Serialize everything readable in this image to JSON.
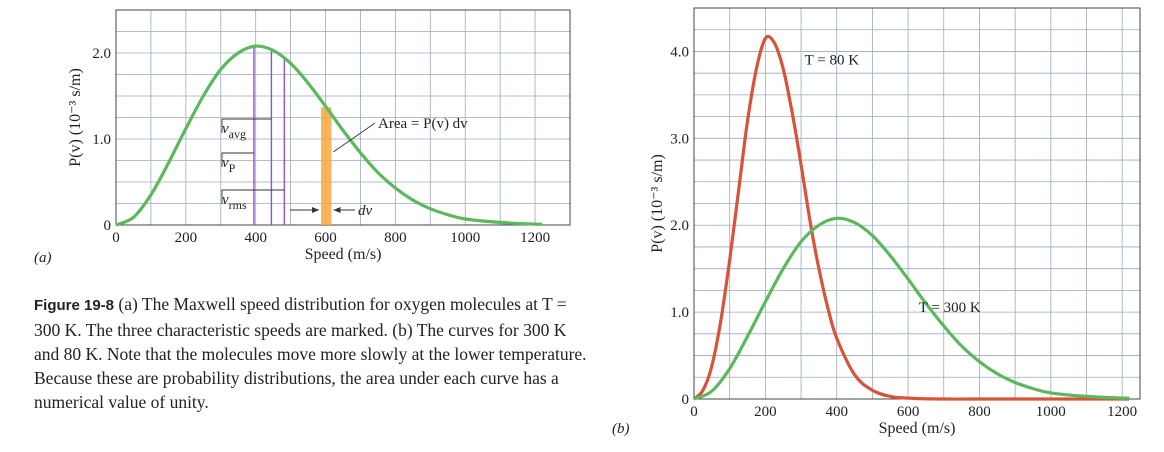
{
  "caption": {
    "figure_label": "Figure 19-8",
    "text": "(a) The Maxwell speed distribution for oxygen molecules at T = 300 K. The three characteristic speeds are marked. (b) The curves for 300 K and 80 K. Note that the molecules move more slowly at the lower temperature. Because these are probability distributions, the area under each curve has a numerical value of unity."
  },
  "colors": {
    "green": "#5cb85c",
    "red": "#d9533a",
    "purple": "#8e55c7",
    "orange": "#f7a83c",
    "grid": "#9aa9c2"
  },
  "chart_data": [
    {
      "type": "line",
      "panel_label": "(a)",
      "xlabel": "Speed (m/s)",
      "ylabel": "P(v) (10⁻³ s/m)",
      "xlim": [
        0,
        1300
      ],
      "ylim": [
        0,
        2.5
      ],
      "xticks": [
        "0",
        "200",
        "400",
        "600",
        "800",
        "1000",
        "1200"
      ],
      "xtick_values": [
        0,
        200,
        400,
        600,
        800,
        1000,
        1200
      ],
      "yticks": [
        "0",
        "1.0",
        "2.0"
      ],
      "ytick_values": [
        0,
        1.0,
        2.0
      ],
      "grid": true,
      "series": [
        {
          "temperature_K": 300,
          "color": "#5cb85c",
          "x": [
            0,
            50,
            100,
            150,
            200,
            250,
            300,
            350,
            400,
            450,
            500,
            550,
            600,
            650,
            700,
            750,
            800,
            850,
            900,
            950,
            1000,
            1100,
            1200,
            1220
          ],
          "y": [
            0,
            0.09,
            0.35,
            0.72,
            1.12,
            1.5,
            1.81,
            2.0,
            2.08,
            2.03,
            1.88,
            1.65,
            1.38,
            1.1,
            0.84,
            0.61,
            0.43,
            0.29,
            0.19,
            0.12,
            0.07,
            0.03,
            0.01,
            0.01
          ]
        }
      ],
      "markers": [
        {
          "label": "v",
          "sub": "avg",
          "x": 445
        },
        {
          "label": "v",
          "sub": "P",
          "x": 395
        },
        {
          "label": "v",
          "sub": "rms",
          "x": 482
        }
      ],
      "strip": {
        "x0": 587,
        "x1": 617,
        "label_area": "Area = P(v) dv",
        "label_dv": "dv"
      }
    },
    {
      "type": "line",
      "panel_label": "(b)",
      "xlabel": "Speed (m/s)",
      "ylabel": "P(v) (10⁻³ s/m)",
      "xlim": [
        0,
        1250
      ],
      "ylim": [
        0,
        4.5
      ],
      "xticks": [
        "0",
        "200",
        "400",
        "600",
        "800",
        "1000",
        "1200"
      ],
      "xtick_values": [
        0,
        200,
        400,
        600,
        800,
        1000,
        1200
      ],
      "yticks": [
        "0",
        "1.0",
        "2.0",
        "3.0",
        "4.0"
      ],
      "ytick_values": [
        0,
        1.0,
        2.0,
        3.0,
        4.0
      ],
      "grid": true,
      "series": [
        {
          "name": "T = 80 K",
          "color": "#d9533a",
          "x": [
            0,
            25,
            50,
            75,
            100,
            125,
            150,
            175,
            200,
            225,
            250,
            275,
            300,
            325,
            350,
            375,
            400,
            450,
            500,
            550,
            600,
            700,
            800,
            1000,
            1220
          ],
          "y": [
            0,
            0.1,
            0.38,
            0.9,
            1.6,
            2.4,
            3.2,
            3.8,
            4.15,
            4.1,
            3.8,
            3.3,
            2.7,
            2.05,
            1.5,
            1.05,
            0.7,
            0.28,
            0.1,
            0.03,
            0.01,
            0,
            0,
            0,
            0
          ]
        },
        {
          "name": "T = 300 K",
          "color": "#5cb85c",
          "x": [
            0,
            50,
            100,
            150,
            200,
            250,
            300,
            350,
            400,
            450,
            500,
            550,
            600,
            650,
            700,
            750,
            800,
            850,
            900,
            950,
            1000,
            1100,
            1200,
            1220
          ],
          "y": [
            0,
            0.09,
            0.35,
            0.72,
            1.12,
            1.5,
            1.81,
            2.0,
            2.08,
            2.03,
            1.88,
            1.65,
            1.38,
            1.1,
            0.84,
            0.61,
            0.43,
            0.29,
            0.19,
            0.12,
            0.07,
            0.03,
            0.01,
            0.01
          ]
        }
      ],
      "curve_labels": [
        {
          "text": "T = 80 K",
          "x": 310,
          "y": 3.85
        },
        {
          "text": "T = 300 K",
          "x": 630,
          "y": 1.0
        }
      ]
    }
  ]
}
